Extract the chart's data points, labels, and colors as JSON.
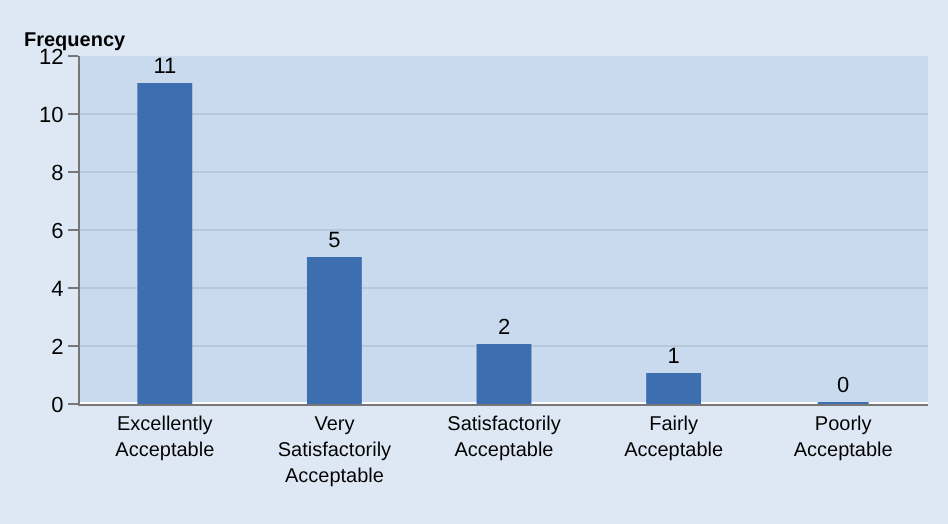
{
  "chart_data": {
    "type": "bar",
    "ylabel": "Frequency",
    "categories": [
      "Excellently Acceptable",
      "Very Satisfactorily Acceptable",
      "Satisfactorily Acceptable",
      "Fairly Acceptable",
      "Poorly Acceptable"
    ],
    "values": [
      11,
      5,
      2,
      1,
      0
    ],
    "color": "#3d6fb0",
    "ylim": [
      0,
      12
    ],
    "yticks": [
      0,
      2,
      4,
      6,
      8,
      10,
      12
    ],
    "grid": "y",
    "data_labels": true,
    "legend": false
  }
}
